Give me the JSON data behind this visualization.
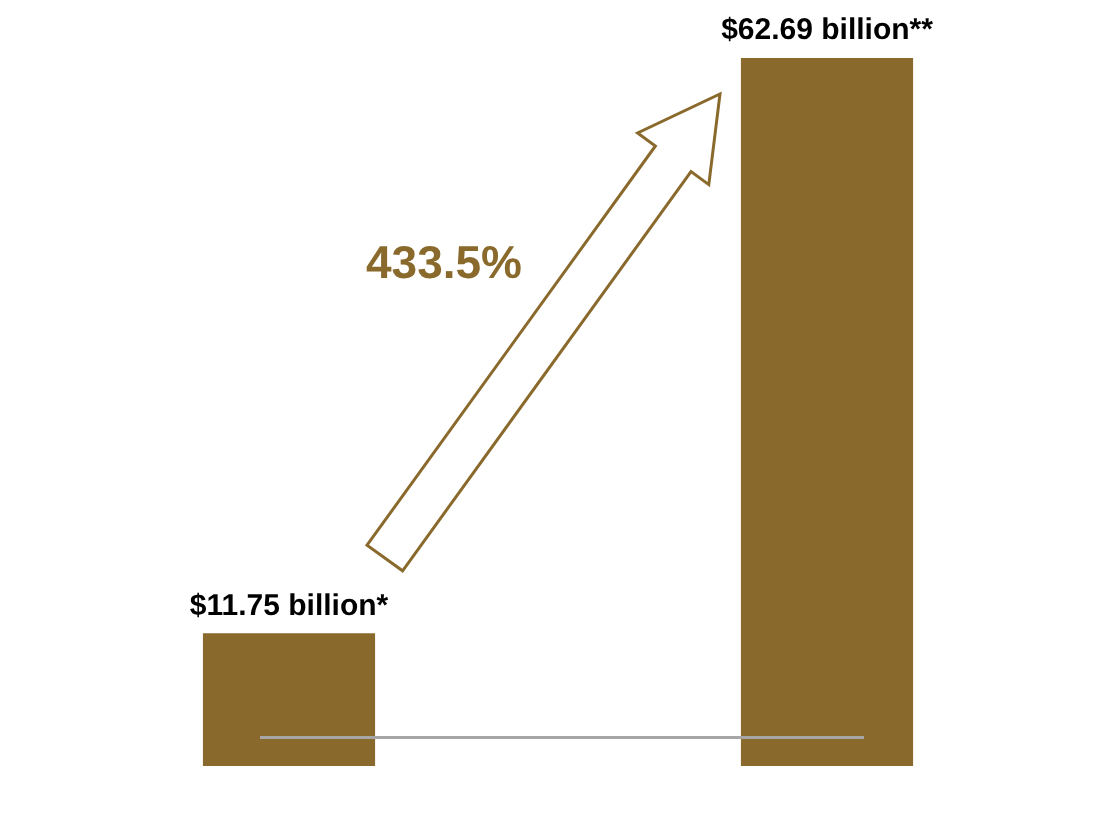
{
  "chart_data": {
    "type": "bar",
    "categories": [
      null,
      null
    ],
    "values": [
      11.75,
      62.69
    ],
    "color": "#8a6a2c",
    "value_labels": [
      "$11.75 billion*",
      "$62.69 billion**"
    ],
    "annotations": [
      "433.5%"
    ],
    "legend": false,
    "tick_labels": false
  }
}
